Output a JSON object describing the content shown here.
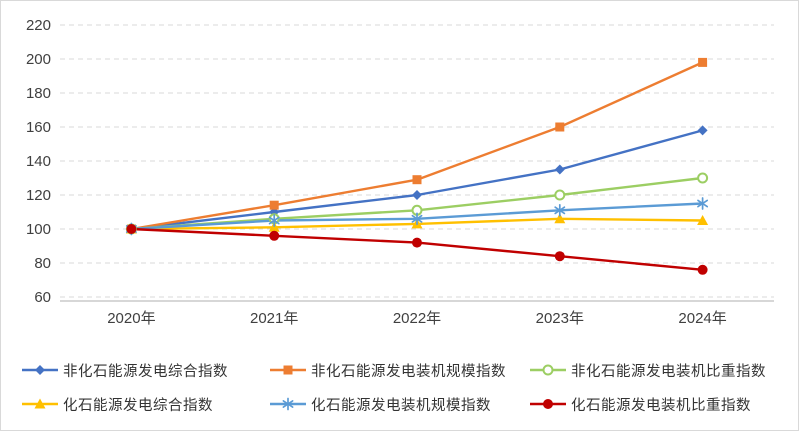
{
  "chart_data": {
    "type": "line",
    "title": "",
    "xlabel": "",
    "ylabel": "",
    "categories": [
      "2020年",
      "2021年",
      "2022年",
      "2023年",
      "2024年"
    ],
    "series": [
      {
        "name": "非化石能源发电综合指数",
        "color": "#4472C4",
        "marker": "diamond",
        "values": [
          100,
          110,
          120,
          135,
          158
        ]
      },
      {
        "name": "非化石能源发电装机规模指数",
        "color": "#ED7D31",
        "marker": "square",
        "values": [
          100,
          114,
          129,
          160,
          198
        ]
      },
      {
        "name": "非化石能源发电装机比重指数",
        "color": "#9CCE63",
        "marker": "circle-open",
        "values": [
          100,
          106,
          111,
          120,
          130
        ]
      },
      {
        "name": "化石能源发电综合指数",
        "color": "#FFC000",
        "marker": "triangle",
        "values": [
          100,
          101,
          103,
          106,
          105
        ]
      },
      {
        "name": "化石能源发电装机规模指数",
        "color": "#5B9BD5",
        "marker": "asterisk",
        "values": [
          100,
          105,
          106,
          111,
          115
        ]
      },
      {
        "name": "化石能源发电装机比重指数",
        "color": "#C00000",
        "marker": "circle",
        "values": [
          100,
          96,
          92,
          84,
          76
        ]
      }
    ],
    "ylim": [
      60,
      220
    ],
    "ytick_step": 20,
    "yticks": [
      220,
      200,
      180,
      160,
      140,
      120,
      100,
      80,
      60
    ],
    "grid": "horizontal-dashed",
    "legend_position": "bottom",
    "legend_rows": 2
  },
  "style": {
    "background": "#FFFFFF",
    "border_color": "#D9D9D9",
    "grid_color": "#D9D9D9",
    "axis_line_color": "#BFBFBF",
    "tick_label_color": "#404040",
    "legend_text_color": "#333333"
  }
}
